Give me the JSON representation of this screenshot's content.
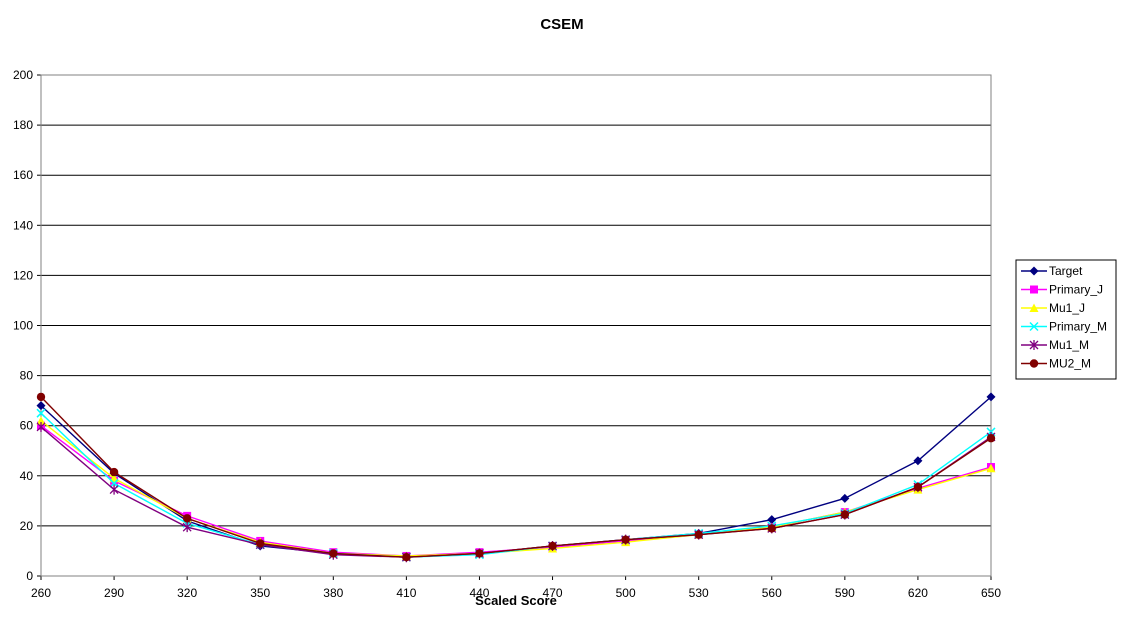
{
  "chart_data": {
    "type": "line",
    "title": "CSEM",
    "xlabel": "Scaled Score",
    "ylabel": "",
    "x": [
      260,
      290,
      320,
      350,
      380,
      410,
      440,
      470,
      500,
      530,
      560,
      590,
      620,
      650
    ],
    "ylim": [
      0,
      200
    ],
    "yticks": [
      0,
      20,
      40,
      60,
      80,
      100,
      120,
      140,
      160,
      180,
      200
    ],
    "grid": "horizontal",
    "legend_position": "right",
    "series": [
      {
        "name": "Target",
        "color": "#000080",
        "marker": "diamond",
        "values": [
          68,
          41,
          22,
          12,
          9,
          7.5,
          9,
          12,
          14.5,
          17,
          22.5,
          31,
          46,
          71.5
        ]
      },
      {
        "name": "Primary_J",
        "color": "#ff00ff",
        "marker": "square",
        "values": [
          60,
          38,
          24,
          14,
          9.5,
          8,
          9.5,
          11.5,
          14,
          16.5,
          19.5,
          25.5,
          35,
          43.5
        ]
      },
      {
        "name": "Mu1_J",
        "color": "#ffff00",
        "marker": "triangle",
        "values": [
          62,
          39,
          23,
          13.5,
          9,
          8,
          9,
          11,
          13.5,
          16.5,
          19.5,
          25.5,
          34.5,
          43
        ]
      },
      {
        "name": "Primary_M",
        "color": "#00ffff",
        "marker": "x",
        "values": [
          65,
          37,
          21,
          12.5,
          9,
          7.5,
          8.5,
          12,
          14.5,
          17,
          20,
          25,
          36.5,
          57.5
        ]
      },
      {
        "name": "Mu1_M",
        "color": "#800080",
        "marker": "asterisk",
        "values": [
          59.5,
          34.5,
          19.5,
          12.5,
          8.5,
          7.5,
          9,
          12,
          14.5,
          16.5,
          19,
          24.5,
          35.5,
          55.5
        ]
      },
      {
        "name": "MU2_M",
        "color": "#800000",
        "marker": "circle",
        "values": [
          71.5,
          41.5,
          23,
          13,
          9,
          7.5,
          9,
          12,
          14.5,
          16.5,
          19,
          24.5,
          35.5,
          55
        ]
      }
    ]
  }
}
